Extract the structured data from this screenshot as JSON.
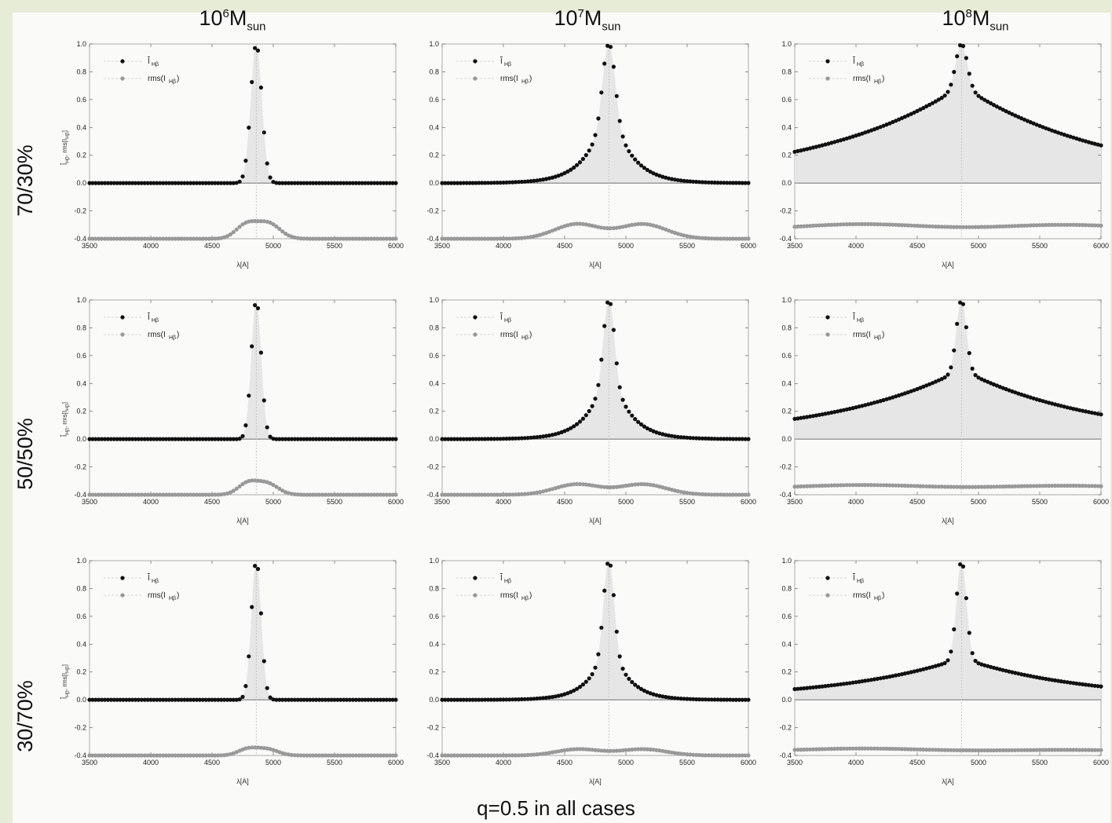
{
  "column_headers": [
    {
      "base": "10",
      "exp": "6",
      "unit": "M",
      "sub": "sun"
    },
    {
      "base": "10",
      "exp": "7",
      "unit": "M",
      "sub": "sun"
    },
    {
      "base": "10",
      "exp": "8",
      "unit": "M",
      "sub": "sun"
    }
  ],
  "row_labels": [
    "70/30%",
    "50/50%",
    "30/70%"
  ],
  "ylabel": {
    "main": "I",
    "sub": "Hβ",
    "rest": ", rms[I",
    "sub2": "Hβ",
    "close": "]"
  },
  "footer": "q=0.5 in all cases",
  "colors": {
    "mean": "#111111",
    "rms": "#999999",
    "fill": "#e6e6e6",
    "center_line": "#bbbbbb"
  },
  "chart_data": {
    "type": "scatter",
    "layout": "3x3 grid",
    "xlabel": "λ[A]",
    "ylabel": "I_Hβ (mean), rms[I_Hβ]",
    "xlim": [
      3500,
      6000
    ],
    "ylim": [
      -0.4,
      1.0
    ],
    "xticks": [
      3500,
      4000,
      4500,
      5000,
      5500,
      6000
    ],
    "yticks": [
      -0.4,
      -0.2,
      0.0,
      0.2,
      0.4,
      0.6,
      0.8,
      1.0
    ],
    "line_center": 4861,
    "legend": [
      {
        "name": "I_Hβ",
        "marker": "black dot"
      },
      {
        "name": "rms(I_Hβ)",
        "marker": "gray dot"
      }
    ],
    "legend_position": "top-left",
    "panels": [
      {
        "row": "70/30%",
        "mass": "1e6 Msun",
        "mean_profile": {
          "sigma": 45,
          "wing_amp": 0.0,
          "wing_scale": 1
        },
        "rms_profile": {
          "baseline": -0.4,
          "bumps": [
            [
              4780,
              -0.3
            ],
            [
              4960,
              -0.29
            ]
          ],
          "dip_at_center": -0.385
        }
      },
      {
        "row": "70/30%",
        "mass": "1e7 Msun",
        "mean_profile": {
          "sigma": 45,
          "wing_amp": 0.6,
          "wing_scale": 170
        },
        "rms_profile": {
          "baseline": -0.4,
          "bumps": [
            [
              4600,
              -0.295
            ],
            [
              5140,
              -0.295
            ]
          ],
          "dip_at_center": -0.395
        }
      },
      {
        "row": "70/30%",
        "mass": "1e8 Msun",
        "mean_profile": {
          "sigma": 45,
          "wing_amp": 0.7,
          "wing_scale": 1200
        },
        "rms_profile": {
          "baseline": -0.335,
          "bumps": [
            [
              4050,
              -0.295
            ],
            [
              5700,
              -0.3
            ]
          ],
          "dip_at_center": -0.38
        }
      },
      {
        "row": "50/50%",
        "mass": "1e6 Msun",
        "mean_profile": {
          "sigma": 40,
          "wing_amp": 0.0,
          "wing_scale": 1
        },
        "rms_profile": {
          "baseline": -0.4,
          "bumps": [
            [
              4790,
              -0.32
            ],
            [
              4950,
              -0.32
            ]
          ],
          "dip_at_center": -0.39
        }
      },
      {
        "row": "50/50%",
        "mass": "1e7 Msun",
        "mean_profile": {
          "sigma": 40,
          "wing_amp": 0.55,
          "wing_scale": 160
        },
        "rms_profile": {
          "baseline": -0.4,
          "bumps": [
            [
              4600,
              -0.325
            ],
            [
              5140,
              -0.325
            ]
          ],
          "dip_at_center": -0.395
        }
      },
      {
        "row": "50/50%",
        "mass": "1e8 Msun",
        "mean_profile": {
          "sigma": 40,
          "wing_amp": 0.5,
          "wing_scale": 1100
        },
        "rms_profile": {
          "baseline": -0.355,
          "bumps": [
            [
              4050,
              -0.33
            ],
            [
              5700,
              -0.335
            ]
          ],
          "dip_at_center": -0.385
        }
      },
      {
        "row": "30/70%",
        "mass": "1e6 Msun",
        "mean_profile": {
          "sigma": 40,
          "wing_amp": 0.0,
          "wing_scale": 1
        },
        "rms_profile": {
          "baseline": -0.4,
          "bumps": [
            [
              4790,
              -0.355
            ],
            [
              4950,
              -0.355
            ]
          ],
          "dip_at_center": -0.395
        }
      },
      {
        "row": "30/70%",
        "mass": "1e7 Msun",
        "mean_profile": {
          "sigma": 40,
          "wing_amp": 0.45,
          "wing_scale": 150
        },
        "rms_profile": {
          "baseline": -0.4,
          "bumps": [
            [
              4610,
              -0.355
            ],
            [
              5140,
              -0.355
            ]
          ],
          "dip_at_center": -0.395
        }
      },
      {
        "row": "30/70%",
        "mass": "1e8 Msun",
        "mean_profile": {
          "sigma": 40,
          "wing_amp": 0.3,
          "wing_scale": 1000
        },
        "rms_profile": {
          "baseline": -0.37,
          "bumps": [
            [
              4050,
              -0.35
            ],
            [
              5700,
              -0.36
            ]
          ],
          "dip_at_center": -0.39
        }
      }
    ]
  }
}
